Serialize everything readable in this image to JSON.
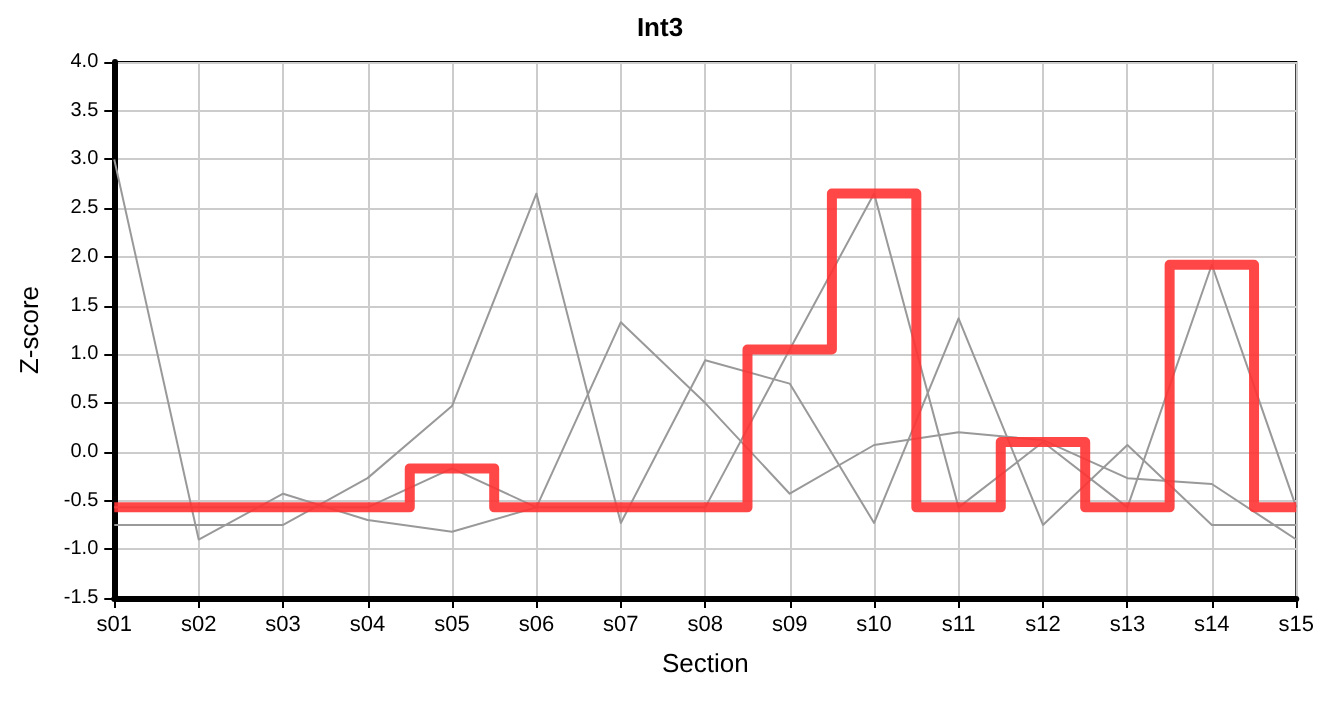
{
  "chart_data": {
    "type": "line",
    "title": "Int3",
    "xlabel": "Section",
    "ylabel": "Z-score",
    "categories": [
      "s01",
      "s02",
      "s03",
      "s04",
      "s05",
      "s06",
      "s07",
      "s08",
      "s09",
      "s10",
      "s11",
      "s12",
      "s13",
      "s14",
      "s15"
    ],
    "series": [
      {
        "color": "#999999",
        "values": [
          -0.75,
          -0.75,
          -0.75,
          -0.27,
          0.47,
          2.65,
          -0.73,
          0.94,
          0.7,
          -0.73,
          1.37,
          -0.75,
          0.07,
          -0.75,
          -0.75
        ]
      },
      {
        "color": "#999999",
        "values": [
          3.0,
          -0.9,
          -0.43,
          -0.7,
          -0.82,
          -0.57,
          1.33,
          0.5,
          -0.43,
          0.07,
          0.2,
          0.12,
          -0.27,
          -0.33,
          -0.9
        ]
      },
      {
        "color": "#999999",
        "values": [
          -0.57,
          -0.57,
          -0.57,
          -0.57,
          -0.17,
          -0.57,
          -0.57,
          -0.57,
          1.05,
          2.65,
          -0.57,
          0.1,
          -0.57,
          1.92,
          -0.57
        ]
      },
      {
        "type": "step",
        "color": "#ff3333",
        "values": [
          -0.57,
          -0.57,
          -0.57,
          -0.57,
          -0.17,
          -0.57,
          -0.57,
          -0.57,
          1.05,
          2.65,
          -0.57,
          0.1,
          -0.57,
          1.92,
          -0.57
        ]
      }
    ],
    "ylim": [
      -1.5,
      4.0
    ],
    "yticks": [
      {
        "value": -1.5,
        "label": "-1.5"
      },
      {
        "value": -1,
        "label": "-1.0"
      },
      {
        "value": -0.5,
        "label": "-0.5"
      },
      {
        "value": 0,
        "label": "0.0"
      },
      {
        "value": 0.5,
        "label": "0.5"
      },
      {
        "value": 1,
        "label": "1.0"
      },
      {
        "value": 1.5,
        "label": "1.5"
      },
      {
        "value": 2,
        "label": "2.0"
      },
      {
        "value": 2.5,
        "label": "2.5"
      },
      {
        "value": 3,
        "label": "3.0"
      },
      {
        "value": 3.5,
        "label": "3.5"
      },
      {
        "value": 4,
        "label": "4.0"
      }
    ],
    "grid": true,
    "marker": "none"
  }
}
